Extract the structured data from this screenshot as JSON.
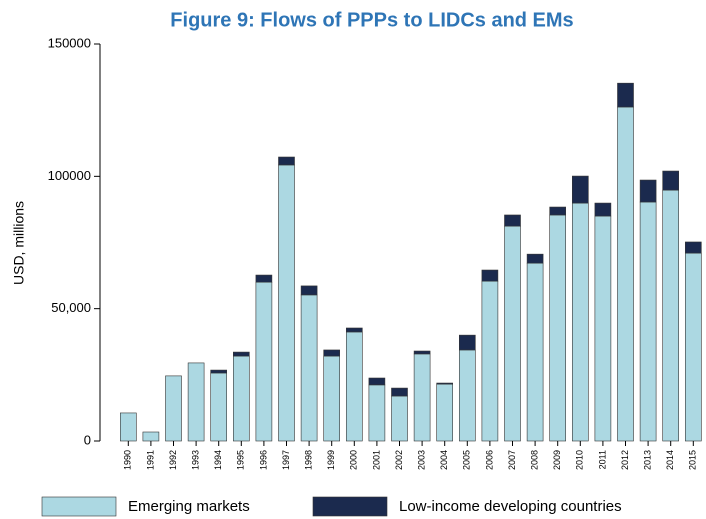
{
  "chart_data": {
    "type": "stacked_bar",
    "title": "Figure 9: Flows of PPPs to LIDCs and EMs",
    "y_label": "USD, millions",
    "categories": [
      "1990",
      "1991",
      "1992",
      "1993",
      "1994",
      "1995",
      "1996",
      "1997",
      "1998",
      "1999",
      "2000",
      "2001",
      "2002",
      "2003",
      "2004",
      "2005",
      "2006",
      "2007",
      "2008",
      "2009",
      "2010",
      "2011",
      "2012",
      "2013",
      "2014",
      "2015"
    ],
    "series": [
      {
        "name": "Emerging markets",
        "color": "#acd8e2",
        "values": [
          10600,
          3400,
          24600,
          29500,
          25700,
          32100,
          60000,
          104300,
          55200,
          32100,
          41200,
          21200,
          17000,
          32900,
          21500,
          34400,
          60400,
          81200,
          67200,
          85400,
          89900,
          85000,
          126200,
          90300,
          94800,
          71000
        ]
      },
      {
        "name": "Low-income developing countries",
        "color": "#1b2a4e",
        "values": [
          0,
          0,
          0,
          0,
          1100,
          1500,
          2700,
          3000,
          3400,
          2300,
          1500,
          2600,
          3000,
          1100,
          400,
          5600,
          4200,
          4200,
          3400,
          3000,
          10200,
          4900,
          9000,
          8300,
          7200,
          4200
        ]
      }
    ],
    "ylim": [
      0,
      150000
    ],
    "yticks": [
      0,
      {
        "value": 50000,
        "label": "50,000"
      },
      100000,
      150000
    ],
    "legend": "bottom"
  }
}
